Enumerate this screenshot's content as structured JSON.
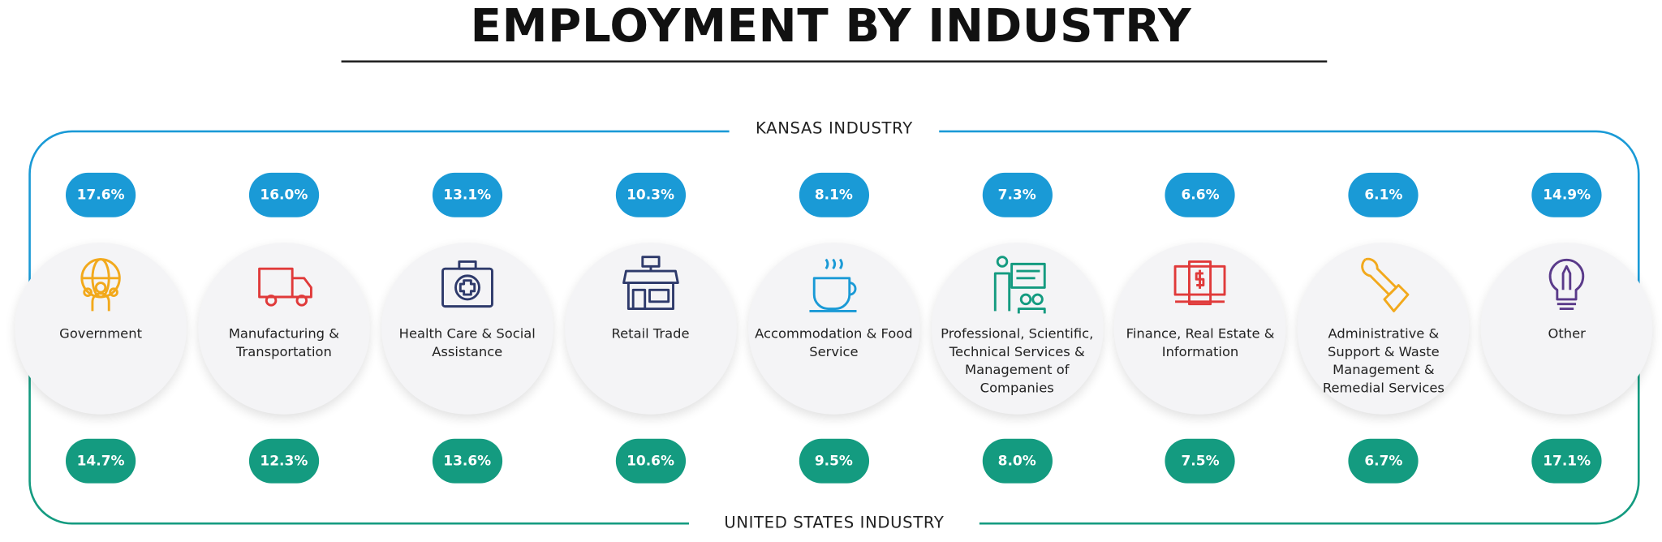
{
  "title": "EMPLOYMENT BY INDUSTRY",
  "top_label": "KANSAS INDUSTRY",
  "bottom_label": "UNITED STATES INDUSTRY",
  "industries": [
    {
      "name": "Government",
      "kansas": "17.6%",
      "us": "14.7%"
    },
    {
      "name": "Manufacturing & Transportation",
      "kansas": "16.0%",
      "us": "12.3%"
    },
    {
      "name": "Health Care & Social Assistance",
      "kansas": "13.1%",
      "us": "13.6%"
    },
    {
      "name": "Retail Trade",
      "kansas": "10.3%",
      "us": "10.6%"
    },
    {
      "name": "Accommodation & Food Service",
      "kansas": "8.1%",
      "us": "9.5%"
    },
    {
      "name": "Professional, Scientific, Technical Services & Management of Companies",
      "kansas": "7.3%",
      "us": "8.0%"
    },
    {
      "name": "Finance, Real Estate & Information",
      "kansas": "6.6%",
      "us": "7.5%"
    },
    {
      "name": "Administrative & Support & Waste Management & Remedial Services",
      "kansas": "6.1%",
      "us": "6.7%"
    },
    {
      "name": "Other",
      "kansas": "14.9%",
      "us": "17.1%"
    }
  ]
}
